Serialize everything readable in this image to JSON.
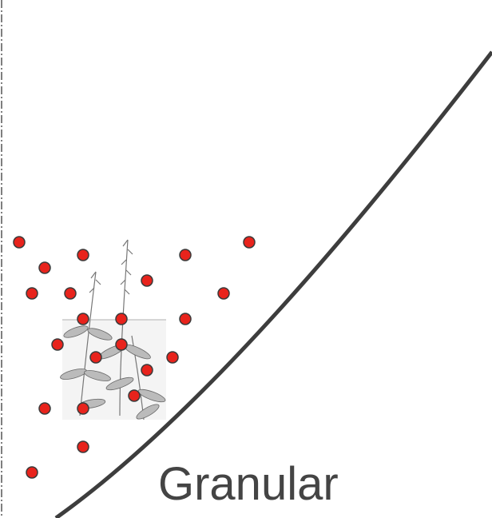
{
  "label": "Granular"
}
